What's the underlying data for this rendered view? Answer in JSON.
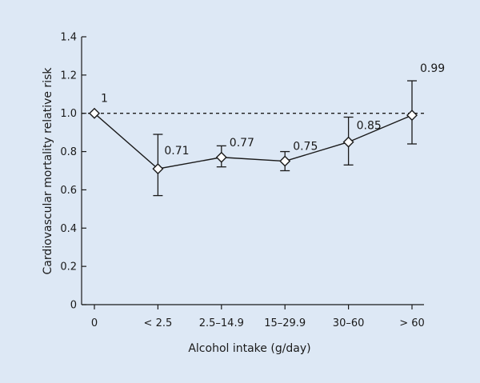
{
  "chart_data": {
    "type": "line",
    "xlabel": "Alcohol intake (g/day)",
    "ylabel": "Cardiovascular mortality relative risk",
    "categories": [
      "0",
      "< 2.5",
      "2.5–14.9",
      "15–29.9",
      "30–60",
      "> 60"
    ],
    "series": [
      {
        "values": [
          1.0,
          0.71,
          0.77,
          0.75,
          0.85,
          0.99
        ],
        "ci_lower": [
          1.0,
          0.57,
          0.72,
          0.7,
          0.73,
          0.84
        ],
        "ci_upper": [
          1.0,
          0.89,
          0.83,
          0.8,
          0.98,
          1.17
        ],
        "labels": [
          "1",
          "0.71",
          "0.77",
          "0.75",
          "0.85",
          "0.99"
        ]
      }
    ],
    "ylim": [
      0,
      1.4
    ],
    "yticks": [
      0,
      0.2,
      0.4,
      0.6,
      0.8,
      1.0,
      1.2,
      1.4
    ],
    "ytick_labels": [
      "0",
      "0.2",
      "0.4",
      "0.6",
      "0.8",
      "1.0",
      "1.2",
      "1.4"
    ],
    "reference_line": {
      "y": 1.0,
      "style": "dashed"
    },
    "grid": false,
    "colors": {
      "background": "#dde8f5",
      "line": "#1a1a1a",
      "marker_fill": "#ffffff"
    }
  }
}
